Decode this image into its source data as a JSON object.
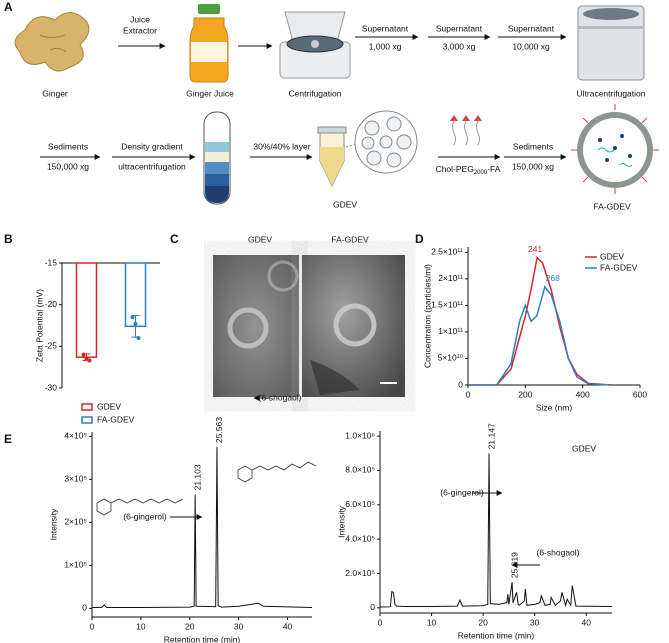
{
  "panels": [
    "A",
    "B",
    "C",
    "D",
    "E"
  ],
  "panel_a": {
    "ginger": "Ginger",
    "juice_extractor": [
      "Juice",
      "Extractor"
    ],
    "ginger_juice": "Ginger Juice",
    "centrifugation": "Centrifugation",
    "spin_1": [
      "Supernatant",
      "1,000 xg"
    ],
    "spin_2": [
      "Supernatant",
      "3,000 xg"
    ],
    "spin_3": [
      "Supernatant",
      "10,000 xg"
    ],
    "ultracentrifugation": "Ultracentrifugation",
    "sediments_1": [
      "Sediments",
      "150,000 xg"
    ],
    "density": [
      "Density gradient",
      "ultracentrifugation"
    ],
    "layer": "30%/40% layer",
    "gdev": "GDEV",
    "ligand": [
      "Chol-PEG",
      "2000",
      "-FA"
    ],
    "sediments_2": [
      "Sediments",
      "150,000 xg"
    ],
    "fa_gdev": "FA-GDEV"
  },
  "panel_c": {
    "images": [
      "GDEV",
      "FA-GDEV"
    ]
  },
  "chart_data": [
    {
      "type": "bar",
      "y_label": "Zeta Potential (mV)",
      "categories": [
        "GDEV",
        "FA-GDEV"
      ],
      "colors": [
        "#d62728",
        "#2f7fc1"
      ],
      "values": [
        -26.3,
        -22.6
      ],
      "errors": [
        0.4,
        1.3
      ],
      "points": [
        [
          -26.0,
          -26.5,
          -26.7
        ],
        [
          -21.5,
          -22.3,
          -24.0
        ]
      ],
      "ylim": [
        -30,
        -15
      ],
      "yticks": [
        -15,
        -20,
        -25,
        -30
      ]
    },
    {
      "type": "line",
      "x_label": "Size (nm)",
      "y_label": "Concentration (particles/ml)",
      "legend": "upper right",
      "series": [
        {
          "name": "GDEV",
          "color": "#d62728",
          "x": [
            0,
            100,
            150,
            180,
            200,
            220,
            241,
            260,
            290,
            320,
            350,
            380,
            420,
            500
          ],
          "values": [
            0,
            0,
            30000000000.0,
            90000000000.0,
            130000000000.0,
            180000000000.0,
            240000000000.0,
            230000000000.0,
            180000000000.0,
            110000000000.0,
            50000000000.0,
            20000000000.0,
            3000000000.0,
            0
          ]
        },
        {
          "name": "FA-GDEV",
          "color": "#2f7fc1",
          "x": [
            0,
            100,
            150,
            180,
            200,
            220,
            240,
            268,
            290,
            320,
            350,
            380,
            420,
            500
          ],
          "values": [
            0,
            0,
            40000000000.0,
            120000000000.0,
            150000000000.0,
            120000000000.0,
            130000000000.0,
            185000000000.0,
            170000000000.0,
            120000000000.0,
            50000000000.0,
            15000000000.0,
            2000000000.0,
            0
          ]
        }
      ],
      "peak_labels": [
        241,
        268
      ],
      "xlim": [
        0,
        600
      ],
      "xticks": [
        0,
        200,
        400,
        600
      ],
      "ylim": [
        0,
        260000000000.0
      ],
      "yticks": [
        0,
        {
          "value": 50000000000.0,
          "label": "5×10¹⁰"
        },
        {
          "value": 100000000000.0,
          "label": "1×10¹¹"
        },
        {
          "value": 150000000000.0,
          "label": "1.5×10¹¹"
        },
        {
          "value": 200000000000.0,
          "label": "2×10¹¹"
        },
        {
          "value": 250000000000.0,
          "label": "2.5×10¹¹"
        }
      ]
    },
    {
      "type": "line",
      "x_label": "Retention time (min)",
      "y_label": "Intensity",
      "series": [
        {
          "color": "#111111",
          "x": [
            0,
            2,
            2.5,
            3,
            10,
            20,
            20.9,
            21.103,
            21.3,
            25.3,
            25.563,
            25.8,
            26.5,
            30,
            34,
            35,
            45
          ],
          "values": [
            2000,
            2500,
            8000,
            2000,
            2000,
            3000,
            5000,
            265000,
            5000,
            4000,
            375000,
            6000,
            3000,
            5000,
            12000,
            5000,
            2000
          ]
        }
      ],
      "peak_labels": [
        21.103,
        25.563
      ],
      "annotations": [
        "(6-gingerol)",
        "(6-shogaol)"
      ],
      "xlim": [
        0,
        45
      ],
      "xticks": [
        0,
        10,
        20,
        30,
        40
      ],
      "ylim": [
        -20000,
        410000
      ],
      "yticks": [
        0,
        {
          "value": 100000,
          "label": "1×10⁵"
        },
        {
          "value": 200000,
          "label": "2×10⁵"
        },
        {
          "value": 300000,
          "label": "3×10⁵"
        },
        {
          "value": 400000,
          "label": "4×10⁵"
        }
      ]
    },
    {
      "type": "line",
      "title": "GDEV",
      "x_label": "Retention time (min)",
      "y_label": "Intensity",
      "series": [
        {
          "color": "#111111",
          "x": [
            0,
            2.0,
            2.3,
            2.6,
            2.9,
            3.2,
            5,
            10,
            15,
            15.5,
            16,
            20,
            20.9,
            21.147,
            21.4,
            23,
            24.6,
            24.8,
            25,
            25.619,
            25.8,
            26.5,
            26.8,
            27,
            28,
            28.2,
            28.5,
            30,
            31,
            31.3,
            32,
            33,
            33.2,
            34,
            35,
            35.3,
            36,
            36.3,
            37,
            37.3,
            38,
            45
          ],
          "values": [
            5000,
            6000,
            95000,
            90000,
            20000,
            10000,
            8000,
            8000,
            10000,
            45000,
            10000,
            12000,
            20000,
            900000,
            25000,
            20000,
            30000,
            80000,
            20000,
            150000,
            30000,
            90000,
            20000,
            15000,
            40000,
            110000,
            15000,
            20000,
            30000,
            70000,
            15000,
            20000,
            60000,
            15000,
            40000,
            90000,
            15000,
            50000,
            15000,
            130000,
            10000,
            8000
          ]
        }
      ],
      "peak_labels": [
        21.147,
        25.619
      ],
      "annotations": [
        "(6-gingerol)",
        "(6-shogaol)"
      ],
      "xlim": [
        0,
        45
      ],
      "xticks": [
        0,
        10,
        20,
        30,
        40
      ],
      "ylim": [
        -30000,
        1030000
      ],
      "yticks": [
        0,
        {
          "value": 200000,
          "label": "2.0×10⁵"
        },
        {
          "value": 400000,
          "label": "4.0×10⁵"
        },
        {
          "value": 600000,
          "label": "6.0×10⁵"
        },
        {
          "value": 800000,
          "label": "8.0×10⁵"
        },
        {
          "value": 1000000,
          "label": "1.0×10⁶"
        }
      ]
    }
  ]
}
